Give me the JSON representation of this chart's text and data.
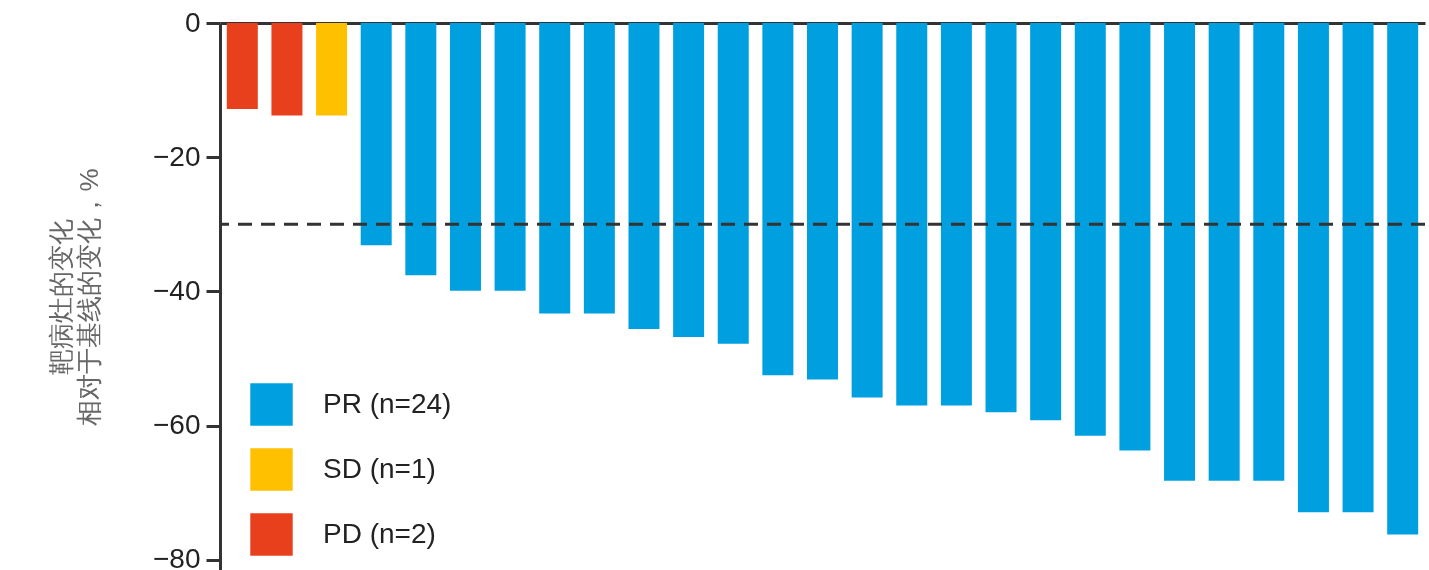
{
  "chart_data": {
    "type": "bar",
    "ylabel": "靶病灶的变化相对于基线的变化，%",
    "categories": [
      null,
      null,
      null,
      null,
      null,
      null,
      null,
      null,
      null,
      null,
      null,
      null,
      null,
      null,
      null,
      null,
      null,
      null,
      null,
      null,
      null,
      null,
      null,
      null,
      null,
      null,
      null
    ],
    "series": [
      {
        "name": "PR (n=24)",
        "color": "#00a0e0",
        "values": [
          null,
          null,
          null,
          -33.1,
          -37.6,
          -39.9,
          -39.9,
          -43.3,
          -43.3,
          -45.6,
          -46.8,
          -47.8,
          -52.5,
          -53.1,
          -55.8,
          -57.0,
          -57.0,
          -58.0,
          -59.2,
          -61.5,
          -63.7,
          -68.2,
          -68.2,
          -68.2,
          -72.9,
          -72.9,
          -76.2
        ]
      },
      {
        "name": "SD (n=1)",
        "color": "#ffc000",
        "values": [
          null,
          null,
          -13.8,
          null,
          null,
          null,
          null,
          null,
          null,
          null,
          null,
          null,
          null,
          null,
          null,
          null,
          null,
          null,
          null,
          null,
          null,
          null,
          null,
          null,
          null,
          null,
          null
        ]
      },
      {
        "name": "PD (n=2)",
        "color": "#e8401c",
        "values": [
          -12.8,
          -13.8,
          null,
          null,
          null,
          null,
          null,
          null,
          null,
          null,
          null,
          null,
          null,
          null,
          null,
          null,
          null,
          null,
          null,
          null,
          null,
          null,
          null,
          null,
          null,
          null,
          null
        ]
      }
    ],
    "ylim": [
      -81.5,
      0
    ],
    "yticks": [
      0,
      -20,
      -40,
      -60,
      -80
    ],
    "ref_lines": [
      {
        "axis": "y",
        "value": -30,
        "line_style": "dashed",
        "color": "#333333"
      }
    ],
    "legend": "bottom left",
    "tick_labels": "y",
    "grid": false
  }
}
